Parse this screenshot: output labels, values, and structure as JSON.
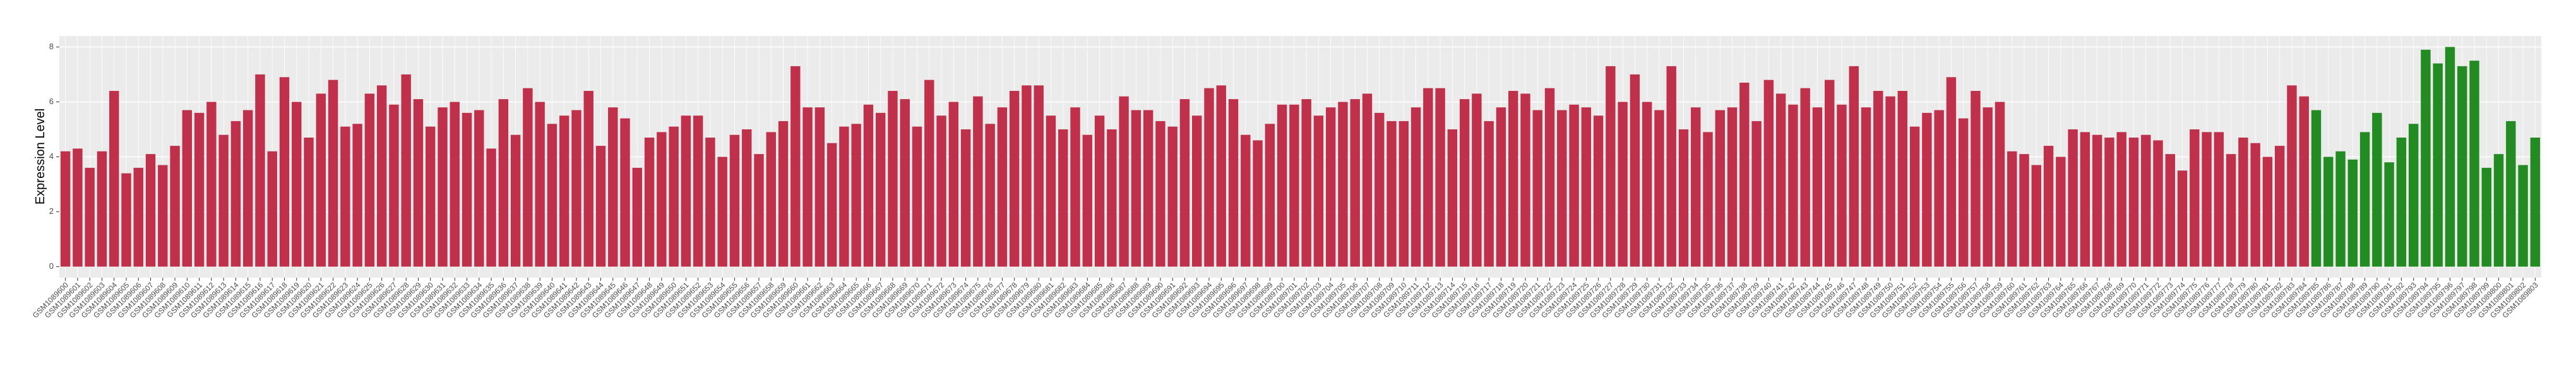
{
  "chart_data": {
    "type": "bar",
    "y_label": "Expression Level",
    "categories": [
      "GSM1089600",
      "GSM1089601",
      "GSM1089602",
      "GSM1089603",
      "GSM1089604",
      "GSM1089605",
      "GSM1089606",
      "GSM1089607",
      "GSM1089608",
      "GSM1089609",
      "GSM1089610",
      "GSM1089611",
      "GSM1089612",
      "GSM1089613",
      "GSM1089614",
      "GSM1089615",
      "GSM1089616",
      "GSM1089617",
      "GSM1089618",
      "GSM1089619",
      "GSM1089620",
      "GSM1089621",
      "GSM1089622",
      "GSM1089623",
      "GSM1089624",
      "GSM1089625",
      "GSM1089626",
      "GSM1089627",
      "GSM1089628",
      "GSM1089629",
      "GSM1089630",
      "GSM1089631",
      "GSM1089632",
      "GSM1089633",
      "GSM1089634",
      "GSM1089635",
      "GSM1089636",
      "GSM1089637",
      "GSM1089638",
      "GSM1089639",
      "GSM1089640",
      "GSM1089641",
      "GSM1089642",
      "GSM1089643",
      "GSM1089644",
      "GSM1089645",
      "GSM1089646",
      "GSM1089647",
      "GSM1089648",
      "GSM1089649",
      "GSM1089650",
      "GSM1089651",
      "GSM1089652",
      "GSM1089653",
      "GSM1089654",
      "GSM1089655",
      "GSM1089656",
      "GSM1089657",
      "GSM1089658",
      "GSM1089659",
      "GSM1089660",
      "GSM1089661",
      "GSM1089662",
      "GSM1089663",
      "GSM1089664",
      "GSM1089665",
      "GSM1089666",
      "GSM1089667",
      "GSM1089668",
      "GSM1089669",
      "GSM1089670",
      "GSM1089671",
      "GSM1089672",
      "GSM1089673",
      "GSM1089674",
      "GSM1089675",
      "GSM1089676",
      "GSM1089677",
      "GSM1089678",
      "GSM1089679",
      "GSM1089680",
      "GSM1089681",
      "GSM1089682",
      "GSM1089683",
      "GSM1089684",
      "GSM1089685",
      "GSM1089686",
      "GSM1089687",
      "GSM1089688",
      "GSM1089689",
      "GSM1089690",
      "GSM1089691",
      "GSM1089692",
      "GSM1089693",
      "GSM1089694",
      "GSM1089695",
      "GSM1089696",
      "GSM1089697",
      "GSM1089698",
      "GSM1089699",
      "GSM1089700",
      "GSM1089701",
      "GSM1089702",
      "GSM1089703",
      "GSM1089704",
      "GSM1089705",
      "GSM1089706",
      "GSM1089707",
      "GSM1089708",
      "GSM1089709",
      "GSM1089710",
      "GSM1089711",
      "GSM1089712",
      "GSM1089713",
      "GSM1089714",
      "GSM1089715",
      "GSM1089716",
      "GSM1089717",
      "GSM1089718",
      "GSM1089719",
      "GSM1089720",
      "GSM1089721",
      "GSM1089722",
      "GSM1089723",
      "GSM1089724",
      "GSM1089725",
      "GSM1089726",
      "GSM1089727",
      "GSM1089728",
      "GSM1089729",
      "GSM1089730",
      "GSM1089731",
      "GSM1089732",
      "GSM1089733",
      "GSM1089734",
      "GSM1089735",
      "GSM1089736",
      "GSM1089737",
      "GSM1089738",
      "GSM1089739",
      "GSM1089740",
      "GSM1089741",
      "GSM1089742",
      "GSM1089743",
      "GSM1089744",
      "GSM1089745",
      "GSM1089746",
      "GSM1089747",
      "GSM1089748",
      "GSM1089749",
      "GSM1089750",
      "GSM1089751",
      "GSM1089752",
      "GSM1089753",
      "GSM1089754",
      "GSM1089755",
      "GSM1089756",
      "GSM1089757",
      "GSM1089758",
      "GSM1089759",
      "GSM1089760",
      "GSM1089761",
      "GSM1089762",
      "GSM1089763",
      "GSM1089764",
      "GSM1089765",
      "GSM1089766",
      "GSM1089767",
      "GSM1089768",
      "GSM1089769",
      "GSM1089770",
      "GSM1089771",
      "GSM1089772",
      "GSM1089773",
      "GSM1089774",
      "GSM1089775",
      "GSM1089776",
      "GSM1089777",
      "GSM1089778",
      "GSM1089779",
      "GSM1089780",
      "GSM1089781",
      "GSM1089782",
      "GSM1089783",
      "GSM1089784",
      "GSM1089785",
      "GSM1089786",
      "GSM1089787",
      "GSM1089788",
      "GSM1089789",
      "GSM1089790",
      "GSM1089791",
      "GSM1089792",
      "GSM1089793",
      "GSM1089794",
      "GSM1089795",
      "GSM1089796",
      "GSM1089797",
      "GSM1089798",
      "GSM1089799",
      "GSM1089800",
      "GSM1089801",
      "GSM1089802",
      "GSM1089803"
    ],
    "values": [
      4.2,
      4.3,
      3.6,
      4.2,
      6.4,
      3.4,
      3.6,
      4.1,
      3.7,
      4.4,
      5.7,
      5.6,
      6.0,
      4.8,
      5.3,
      5.7,
      7.0,
      4.2,
      6.9,
      6.0,
      4.7,
      6.3,
      6.8,
      5.1,
      5.2,
      6.3,
      6.6,
      5.9,
      7.0,
      6.1,
      5.1,
      5.8,
      6.0,
      5.6,
      5.7,
      4.3,
      6.1,
      4.8,
      6.5,
      6.0,
      5.2,
      5.5,
      5.7,
      6.4,
      4.4,
      5.8,
      5.4,
      3.6,
      4.7,
      4.9,
      5.1,
      5.5,
      5.5,
      4.7,
      4.0,
      4.8,
      5.0,
      4.1,
      4.9,
      5.3,
      7.3,
      5.8,
      5.8,
      4.5,
      5.1,
      5.2,
      5.9,
      5.6,
      6.4,
      6.1,
      5.1,
      6.8,
      5.5,
      6.0,
      5.0,
      6.2,
      5.2,
      5.8,
      6.4,
      6.6,
      6.6,
      5.5,
      5.0,
      5.8,
      4.8,
      5.5,
      5.0,
      6.2,
      5.7,
      5.7,
      5.3,
      5.1,
      6.1,
      5.5,
      6.5,
      6.6,
      6.1,
      4.8,
      4.6,
      5.2,
      5.9,
      5.9,
      6.1,
      5.5,
      5.8,
      6.0,
      6.1,
      6.3,
      5.6,
      5.3,
      5.3,
      5.8,
      6.5,
      6.5,
      5.0,
      6.1,
      6.3,
      5.3,
      5.8,
      6.4,
      6.3,
      5.7,
      6.5,
      5.7,
      5.9,
      5.8,
      5.5,
      7.3,
      6.0,
      7.0,
      6.0,
      5.7,
      7.3,
      5.0,
      5.8,
      4.9,
      5.7,
      5.8,
      6.7,
      5.3,
      6.8,
      6.3,
      5.9,
      6.5,
      5.8,
      6.8,
      5.9,
      7.3,
      5.8,
      6.4,
      6.2,
      6.4,
      5.1,
      5.6,
      5.7,
      6.9,
      5.4,
      6.4,
      5.8,
      6.0,
      4.2,
      4.1,
      3.7,
      4.4,
      4.0,
      5.0,
      4.9,
      4.8,
      4.7,
      4.9,
      4.7,
      4.8,
      4.6,
      4.1,
      3.5,
      5.0,
      4.9,
      4.9,
      4.1,
      4.7,
      4.5,
      4.0,
      4.4,
      6.6,
      6.2,
      5.7,
      4.0,
      4.2,
      3.9,
      4.9,
      5.6,
      3.8,
      4.7,
      5.2,
      7.9,
      7.4,
      8.0,
      7.3,
      7.5,
      3.6,
      4.1,
      5.3,
      3.7,
      4.7
    ],
    "colors": [
      "#c0304a",
      "#c0304a",
      "#c0304a",
      "#c0304a",
      "#c0304a",
      "#c0304a",
      "#c0304a",
      "#c0304a",
      "#c0304a",
      "#c0304a",
      "#c0304a",
      "#c0304a",
      "#c0304a",
      "#c0304a",
      "#c0304a",
      "#c0304a",
      "#c0304a",
      "#c0304a",
      "#c0304a",
      "#c0304a",
      "#c0304a",
      "#c0304a",
      "#c0304a",
      "#c0304a",
      "#c0304a",
      "#c0304a",
      "#c0304a",
      "#c0304a",
      "#c0304a",
      "#c0304a",
      "#c0304a",
      "#c0304a",
      "#c0304a",
      "#c0304a",
      "#c0304a",
      "#c0304a",
      "#c0304a",
      "#c0304a",
      "#c0304a",
      "#c0304a",
      "#c0304a",
      "#c0304a",
      "#c0304a",
      "#c0304a",
      "#c0304a",
      "#c0304a",
      "#c0304a",
      "#c0304a",
      "#c0304a",
      "#c0304a",
      "#c0304a",
      "#c0304a",
      "#c0304a",
      "#c0304a",
      "#c0304a",
      "#c0304a",
      "#c0304a",
      "#c0304a",
      "#c0304a",
      "#c0304a",
      "#c0304a",
      "#c0304a",
      "#c0304a",
      "#c0304a",
      "#c0304a",
      "#c0304a",
      "#c0304a",
      "#c0304a",
      "#c0304a",
      "#c0304a",
      "#c0304a",
      "#c0304a",
      "#c0304a",
      "#c0304a",
      "#c0304a",
      "#c0304a",
      "#c0304a",
      "#c0304a",
      "#c0304a",
      "#c0304a",
      "#c0304a",
      "#c0304a",
      "#c0304a",
      "#c0304a",
      "#c0304a",
      "#c0304a",
      "#c0304a",
      "#c0304a",
      "#c0304a",
      "#c0304a",
      "#c0304a",
      "#c0304a",
      "#c0304a",
      "#c0304a",
      "#c0304a",
      "#c0304a",
      "#c0304a",
      "#c0304a",
      "#c0304a",
      "#c0304a",
      "#c0304a",
      "#c0304a",
      "#c0304a",
      "#c0304a",
      "#c0304a",
      "#c0304a",
      "#c0304a",
      "#c0304a",
      "#c0304a",
      "#c0304a",
      "#c0304a",
      "#c0304a",
      "#c0304a",
      "#c0304a",
      "#c0304a",
      "#c0304a",
      "#c0304a",
      "#c0304a",
      "#c0304a",
      "#c0304a",
      "#c0304a",
      "#c0304a",
      "#c0304a",
      "#c0304a",
      "#c0304a",
      "#c0304a",
      "#c0304a",
      "#c0304a",
      "#c0304a",
      "#c0304a",
      "#c0304a",
      "#c0304a",
      "#c0304a",
      "#c0304a",
      "#c0304a",
      "#c0304a",
      "#c0304a",
      "#c0304a",
      "#c0304a",
      "#c0304a",
      "#c0304a",
      "#c0304a",
      "#c0304a",
      "#c0304a",
      "#c0304a",
      "#c0304a",
      "#c0304a",
      "#c0304a",
      "#c0304a",
      "#c0304a",
      "#c0304a",
      "#c0304a",
      "#c0304a",
      "#c0304a",
      "#c0304a",
      "#c0304a",
      "#c0304a",
      "#c0304a",
      "#c0304a",
      "#c0304a",
      "#c0304a",
      "#c0304a",
      "#c0304a",
      "#c0304a",
      "#c0304a",
      "#c0304a",
      "#c0304a",
      "#c0304a",
      "#c0304a",
      "#c0304a",
      "#c0304a",
      "#c0304a",
      "#c0304a",
      "#c0304a",
      "#c0304a",
      "#c0304a",
      "#c0304a",
      "#c0304a",
      "#c0304a",
      "#c0304a",
      "#c0304a",
      "#c0304a",
      "#c0304a",
      "#c0304a",
      "#c0304a",
      "#228b22",
      "#228b22",
      "#228b22",
      "#228b22",
      "#228b22",
      "#228b22",
      "#228b22",
      "#228b22",
      "#228b22",
      "#228b22",
      "#228b22",
      "#228b22",
      "#228b22",
      "#228b22",
      "#228b22",
      "#228b22",
      "#228b22",
      "#228b22",
      "#228b22",
      "#228b22",
      "#228b22"
    ],
    "ylim": [
      -0.4,
      8.4
    ],
    "yticks": [
      0,
      2,
      4,
      6,
      8
    ],
    "grid": true,
    "panel_background": "#ebebeb"
  }
}
